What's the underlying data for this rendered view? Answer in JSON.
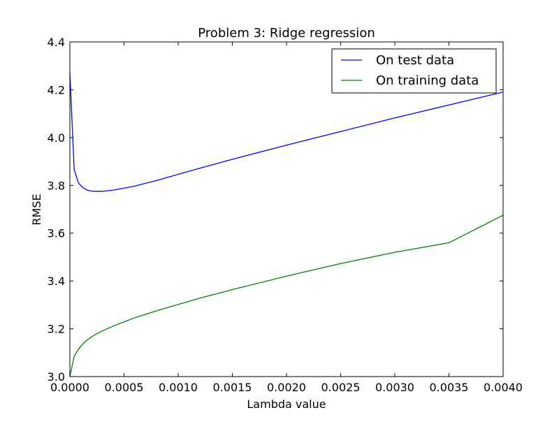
{
  "chart_data": {
    "type": "line",
    "title": "Problem 3: Ridge regression",
    "xlabel": "Lambda value",
    "ylabel": "RMSE",
    "xlim": [
      0.0,
      0.004
    ],
    "ylim": [
      3.0,
      4.4
    ],
    "xticks": [
      0.0,
      0.0005,
      0.001,
      0.0015,
      0.002,
      0.0025,
      0.003,
      0.0035,
      0.004
    ],
    "xtick_labels": [
      "0.0000",
      "0.0005",
      "0.0010",
      "0.0015",
      "0.0020",
      "0.0025",
      "0.0030",
      "0.0035",
      "0.0040"
    ],
    "yticks": [
      3.0,
      3.2,
      3.4,
      3.6,
      3.8,
      4.0,
      4.2,
      4.4
    ],
    "ytick_labels": [
      "3.0",
      "3.2",
      "3.4",
      "3.6",
      "3.8",
      "4.0",
      "4.2",
      "4.4"
    ],
    "grid": false,
    "legend_position": "upper-right",
    "series": [
      {
        "name": "On test data",
        "color": "#0000ff",
        "x": [
          0.0,
          4e-05,
          8e-05,
          0.00012,
          0.00016,
          0.0002,
          0.00024,
          0.00028,
          0.00032,
          0.0004,
          0.0005,
          0.0006,
          0.0008,
          0.001,
          0.0012,
          0.0015,
          0.002,
          0.0025,
          0.003,
          0.0035,
          0.004
        ],
        "y": [
          4.27,
          3.865,
          3.81,
          3.79,
          3.78,
          3.776,
          3.775,
          3.775,
          3.776,
          3.78,
          3.788,
          3.797,
          3.82,
          3.846,
          3.872,
          3.909,
          3.968,
          4.025,
          4.082,
          4.136,
          4.19
        ]
      },
      {
        "name": "On training data",
        "color": "#008000",
        "x": [
          0.0,
          4e-05,
          8e-05,
          0.00012,
          0.00016,
          0.0002,
          0.00024,
          0.0003,
          0.0004,
          0.0005,
          0.0006,
          0.0008,
          0.001,
          0.0012,
          0.0015,
          0.002,
          0.0025,
          0.003,
          0.0035,
          0.004
        ],
        "y": [
          3.0,
          3.085,
          3.115,
          3.137,
          3.153,
          3.166,
          3.177,
          3.191,
          3.211,
          3.229,
          3.246,
          3.275,
          3.302,
          3.328,
          3.364,
          3.42,
          3.473,
          3.52,
          3.56,
          3.675
        ]
      }
    ]
  }
}
